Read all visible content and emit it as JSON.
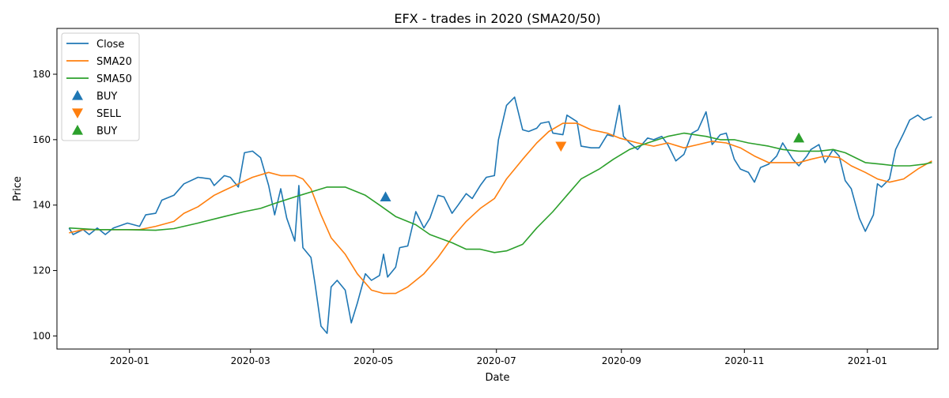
{
  "chart_data": {
    "type": "line",
    "title": "EFX - trades in 2020 (SMA20/50)",
    "xlabel": "Date",
    "ylabel": "Price",
    "xlim": [
      "2019-11-26",
      "2021-02-05"
    ],
    "ylim": [
      96,
      194
    ],
    "x_ticks": [
      "2020-01-01",
      "2020-03-01",
      "2020-05-01",
      "2020-07-01",
      "2020-09-01",
      "2020-11-01",
      "2021-01-01"
    ],
    "x_tick_labels": [
      "2020-01",
      "2020-03",
      "2020-05",
      "2020-07",
      "2020-09",
      "2020-11",
      "2021-01"
    ],
    "y_ticks": [
      100,
      120,
      140,
      160,
      180
    ],
    "y_tick_labels": [
      "100",
      "120",
      "140",
      "160",
      "180"
    ],
    "grid": false,
    "legend_position": "top-left",
    "series": [
      {
        "name": "Close",
        "color": "#1f77b4",
        "points": [
          [
            "2019-12-02",
            133
          ],
          [
            "2019-12-04",
            131
          ],
          [
            "2019-12-09",
            132.5
          ],
          [
            "2019-12-12",
            131
          ],
          [
            "2019-12-16",
            133
          ],
          [
            "2019-12-20",
            131
          ],
          [
            "2019-12-24",
            133
          ],
          [
            "2019-12-31",
            134.5
          ],
          [
            "2020-01-06",
            133.5
          ],
          [
            "2020-01-09",
            137
          ],
          [
            "2020-01-14",
            137.5
          ],
          [
            "2020-01-17",
            141.5
          ],
          [
            "2020-01-23",
            143
          ],
          [
            "2020-01-28",
            146.5
          ],
          [
            "2020-02-04",
            148.5
          ],
          [
            "2020-02-10",
            148
          ],
          [
            "2020-02-12",
            146
          ],
          [
            "2020-02-17",
            149
          ],
          [
            "2020-02-20",
            148.5
          ],
          [
            "2020-02-24",
            145.5
          ],
          [
            "2020-02-27",
            156
          ],
          [
            "2020-03-02",
            156.5
          ],
          [
            "2020-03-06",
            154.5
          ],
          [
            "2020-03-10",
            146
          ],
          [
            "2020-03-13",
            137
          ],
          [
            "2020-03-16",
            145
          ],
          [
            "2020-03-19",
            136
          ],
          [
            "2020-03-23",
            129
          ],
          [
            "2020-03-25",
            146
          ],
          [
            "2020-03-27",
            127
          ],
          [
            "2020-03-31",
            124
          ],
          [
            "2020-04-02",
            116
          ],
          [
            "2020-04-05",
            103
          ],
          [
            "2020-04-08",
            100.8
          ],
          [
            "2020-04-10",
            115
          ],
          [
            "2020-04-13",
            117
          ],
          [
            "2020-04-17",
            114
          ],
          [
            "2020-04-20",
            104
          ],
          [
            "2020-04-23",
            110
          ],
          [
            "2020-04-27",
            119
          ],
          [
            "2020-04-30",
            117
          ],
          [
            "2020-05-04",
            118.5
          ],
          [
            "2020-05-06",
            125
          ],
          [
            "2020-05-08",
            118
          ],
          [
            "2020-05-12",
            121
          ],
          [
            "2020-05-14",
            127
          ],
          [
            "2020-05-18",
            127.5
          ],
          [
            "2020-05-22",
            138
          ],
          [
            "2020-05-26",
            133
          ],
          [
            "2020-05-29",
            136
          ],
          [
            "2020-06-02",
            143
          ],
          [
            "2020-06-05",
            142.5
          ],
          [
            "2020-06-09",
            137.5
          ],
          [
            "2020-06-12",
            140
          ],
          [
            "2020-06-16",
            143.5
          ],
          [
            "2020-06-19",
            142
          ],
          [
            "2020-06-23",
            146
          ],
          [
            "2020-06-26",
            148.5
          ],
          [
            "2020-06-30",
            149
          ],
          [
            "2020-07-02",
            160
          ],
          [
            "2020-07-06",
            170.5
          ],
          [
            "2020-07-10",
            173
          ],
          [
            "2020-07-14",
            163
          ],
          [
            "2020-07-17",
            162.5
          ],
          [
            "2020-07-21",
            163.5
          ],
          [
            "2020-07-23",
            165
          ],
          [
            "2020-07-27",
            165.5
          ],
          [
            "2020-07-29",
            162
          ],
          [
            "2020-08-03",
            161.5
          ],
          [
            "2020-08-05",
            167.5
          ],
          [
            "2020-08-10",
            165.5
          ],
          [
            "2020-08-12",
            158
          ],
          [
            "2020-08-17",
            157.5
          ],
          [
            "2020-08-21",
            157.5
          ],
          [
            "2020-08-25",
            161.5
          ],
          [
            "2020-08-28",
            161
          ],
          [
            "2020-08-31",
            170.5
          ],
          [
            "2020-09-02",
            161
          ],
          [
            "2020-09-05",
            159
          ],
          [
            "2020-09-09",
            157
          ],
          [
            "2020-09-14",
            160.5
          ],
          [
            "2020-09-17",
            160
          ],
          [
            "2020-09-21",
            161
          ],
          [
            "2020-09-24",
            158.5
          ],
          [
            "2020-09-28",
            153.5
          ],
          [
            "2020-10-02",
            155.5
          ],
          [
            "2020-10-06",
            162
          ],
          [
            "2020-10-09",
            163
          ],
          [
            "2020-10-13",
            168.5
          ],
          [
            "2020-10-16",
            158.5
          ],
          [
            "2020-10-20",
            161.5
          ],
          [
            "2020-10-23",
            162
          ],
          [
            "2020-10-27",
            154
          ],
          [
            "2020-10-30",
            151
          ],
          [
            "2020-11-03",
            150
          ],
          [
            "2020-11-06",
            147
          ],
          [
            "2020-11-09",
            151.5
          ],
          [
            "2020-11-13",
            152.5
          ],
          [
            "2020-11-17",
            155
          ],
          [
            "2020-11-20",
            159
          ],
          [
            "2020-11-25",
            154
          ],
          [
            "2020-11-28",
            152
          ],
          [
            "2020-12-02",
            155
          ],
          [
            "2020-12-04",
            157
          ],
          [
            "2020-12-08",
            158.5
          ],
          [
            "2020-12-11",
            153
          ],
          [
            "2020-12-15",
            157
          ],
          [
            "2020-12-18",
            155
          ],
          [
            "2020-12-21",
            147.5
          ],
          [
            "2020-12-24",
            145
          ],
          [
            "2020-12-28",
            136
          ],
          [
            "2020-12-31",
            132
          ],
          [
            "2021-01-04",
            137
          ],
          [
            "2021-01-06",
            146.5
          ],
          [
            "2021-01-08",
            145.5
          ],
          [
            "2021-01-12",
            148
          ],
          [
            "2021-01-15",
            157
          ],
          [
            "2021-01-19",
            162
          ],
          [
            "2021-01-22",
            166
          ],
          [
            "2021-01-26",
            167.5
          ],
          [
            "2021-01-29",
            166
          ],
          [
            "2021-02-02",
            167
          ]
        ]
      },
      {
        "name": "SMA20",
        "color": "#ff7f0e",
        "points": [
          [
            "2019-12-02",
            131.5
          ],
          [
            "2019-12-09",
            132.5
          ],
          [
            "2019-12-16",
            132.5
          ],
          [
            "2019-12-24",
            132.5
          ],
          [
            "2020-01-06",
            132.5
          ],
          [
            "2020-01-14",
            133.5
          ],
          [
            "2020-01-23",
            135
          ],
          [
            "2020-01-28",
            137.5
          ],
          [
            "2020-02-04",
            139.5
          ],
          [
            "2020-02-12",
            143
          ],
          [
            "2020-02-17",
            144.5
          ],
          [
            "2020-02-24",
            146.5
          ],
          [
            "2020-03-02",
            148.5
          ],
          [
            "2020-03-10",
            150
          ],
          [
            "2020-03-16",
            149
          ],
          [
            "2020-03-23",
            149
          ],
          [
            "2020-03-27",
            148
          ],
          [
            "2020-03-31",
            145
          ],
          [
            "2020-04-05",
            137
          ],
          [
            "2020-04-10",
            130
          ],
          [
            "2020-04-17",
            125
          ],
          [
            "2020-04-23",
            119
          ],
          [
            "2020-04-30",
            114
          ],
          [
            "2020-05-06",
            113
          ],
          [
            "2020-05-12",
            113
          ],
          [
            "2020-05-18",
            115
          ],
          [
            "2020-05-26",
            119
          ],
          [
            "2020-06-02",
            124
          ],
          [
            "2020-06-09",
            130
          ],
          [
            "2020-06-16",
            135
          ],
          [
            "2020-06-23",
            139
          ],
          [
            "2020-06-30",
            142
          ],
          [
            "2020-07-06",
            148
          ],
          [
            "2020-07-14",
            154
          ],
          [
            "2020-07-21",
            159
          ],
          [
            "2020-07-27",
            162.5
          ],
          [
            "2020-08-03",
            165
          ],
          [
            "2020-08-10",
            165
          ],
          [
            "2020-08-17",
            163
          ],
          [
            "2020-08-25",
            162
          ],
          [
            "2020-08-31",
            160.5
          ],
          [
            "2020-09-09",
            159
          ],
          [
            "2020-09-17",
            158
          ],
          [
            "2020-09-24",
            159
          ],
          [
            "2020-10-02",
            157.5
          ],
          [
            "2020-10-09",
            158.5
          ],
          [
            "2020-10-16",
            159.5
          ],
          [
            "2020-10-23",
            159
          ],
          [
            "2020-10-30",
            157.5
          ],
          [
            "2020-11-06",
            155
          ],
          [
            "2020-11-13",
            153
          ],
          [
            "2020-11-20",
            153
          ],
          [
            "2020-11-28",
            153
          ],
          [
            "2020-12-04",
            154
          ],
          [
            "2020-12-11",
            155
          ],
          [
            "2020-12-18",
            154.5
          ],
          [
            "2020-12-24",
            152
          ],
          [
            "2020-12-31",
            150
          ],
          [
            "2021-01-06",
            148
          ],
          [
            "2021-01-12",
            147
          ],
          [
            "2021-01-19",
            148
          ],
          [
            "2021-01-26",
            151
          ],
          [
            "2021-02-02",
            153.5
          ]
        ]
      },
      {
        "name": "SMA50",
        "color": "#2ca02c",
        "points": [
          [
            "2019-12-02",
            133
          ],
          [
            "2019-12-16",
            132.5
          ],
          [
            "2019-12-31",
            132.5
          ],
          [
            "2020-01-14",
            132.3
          ],
          [
            "2020-01-23",
            132.8
          ],
          [
            "2020-02-04",
            134.5
          ],
          [
            "2020-02-17",
            136.5
          ],
          [
            "2020-02-27",
            138
          ],
          [
            "2020-03-06",
            139
          ],
          [
            "2020-03-13",
            140.5
          ],
          [
            "2020-03-23",
            142.5
          ],
          [
            "2020-03-31",
            144
          ],
          [
            "2020-04-08",
            145.5
          ],
          [
            "2020-04-17",
            145.5
          ],
          [
            "2020-04-27",
            143
          ],
          [
            "2020-05-04",
            140
          ],
          [
            "2020-05-12",
            136.5
          ],
          [
            "2020-05-22",
            134
          ],
          [
            "2020-05-29",
            131
          ],
          [
            "2020-06-09",
            128.5
          ],
          [
            "2020-06-16",
            126.5
          ],
          [
            "2020-06-23",
            126.5
          ],
          [
            "2020-06-30",
            125.5
          ],
          [
            "2020-07-06",
            126
          ],
          [
            "2020-07-14",
            128
          ],
          [
            "2020-07-21",
            133
          ],
          [
            "2020-07-29",
            138
          ],
          [
            "2020-08-05",
            143
          ],
          [
            "2020-08-12",
            148
          ],
          [
            "2020-08-21",
            151
          ],
          [
            "2020-08-28",
            154
          ],
          [
            "2020-09-05",
            157
          ],
          [
            "2020-09-14",
            159
          ],
          [
            "2020-09-24",
            161
          ],
          [
            "2020-10-02",
            162
          ],
          [
            "2020-10-13",
            161
          ],
          [
            "2020-10-20",
            160
          ],
          [
            "2020-10-27",
            160
          ],
          [
            "2020-11-03",
            159
          ],
          [
            "2020-11-13",
            158
          ],
          [
            "2020-11-20",
            157
          ],
          [
            "2020-11-28",
            156.5
          ],
          [
            "2020-12-08",
            156.5
          ],
          [
            "2020-12-15",
            157
          ],
          [
            "2020-12-21",
            156
          ],
          [
            "2020-12-31",
            153
          ],
          [
            "2021-01-08",
            152.5
          ],
          [
            "2021-01-15",
            152
          ],
          [
            "2021-01-22",
            152
          ],
          [
            "2021-01-29",
            152.5
          ],
          [
            "2021-02-02",
            153
          ]
        ]
      }
    ],
    "markers": [
      {
        "name": "BUY",
        "shape": "triangle-up",
        "color": "#1f77b4",
        "date": "2020-05-07",
        "price": 142.5
      },
      {
        "name": "SELL",
        "shape": "triangle-down",
        "color": "#ff7f0e",
        "date": "2020-08-02",
        "price": 158
      },
      {
        "name": "BUY",
        "shape": "triangle-up",
        "color": "#2ca02c",
        "date": "2020-11-28",
        "price": 160.5
      }
    ]
  }
}
